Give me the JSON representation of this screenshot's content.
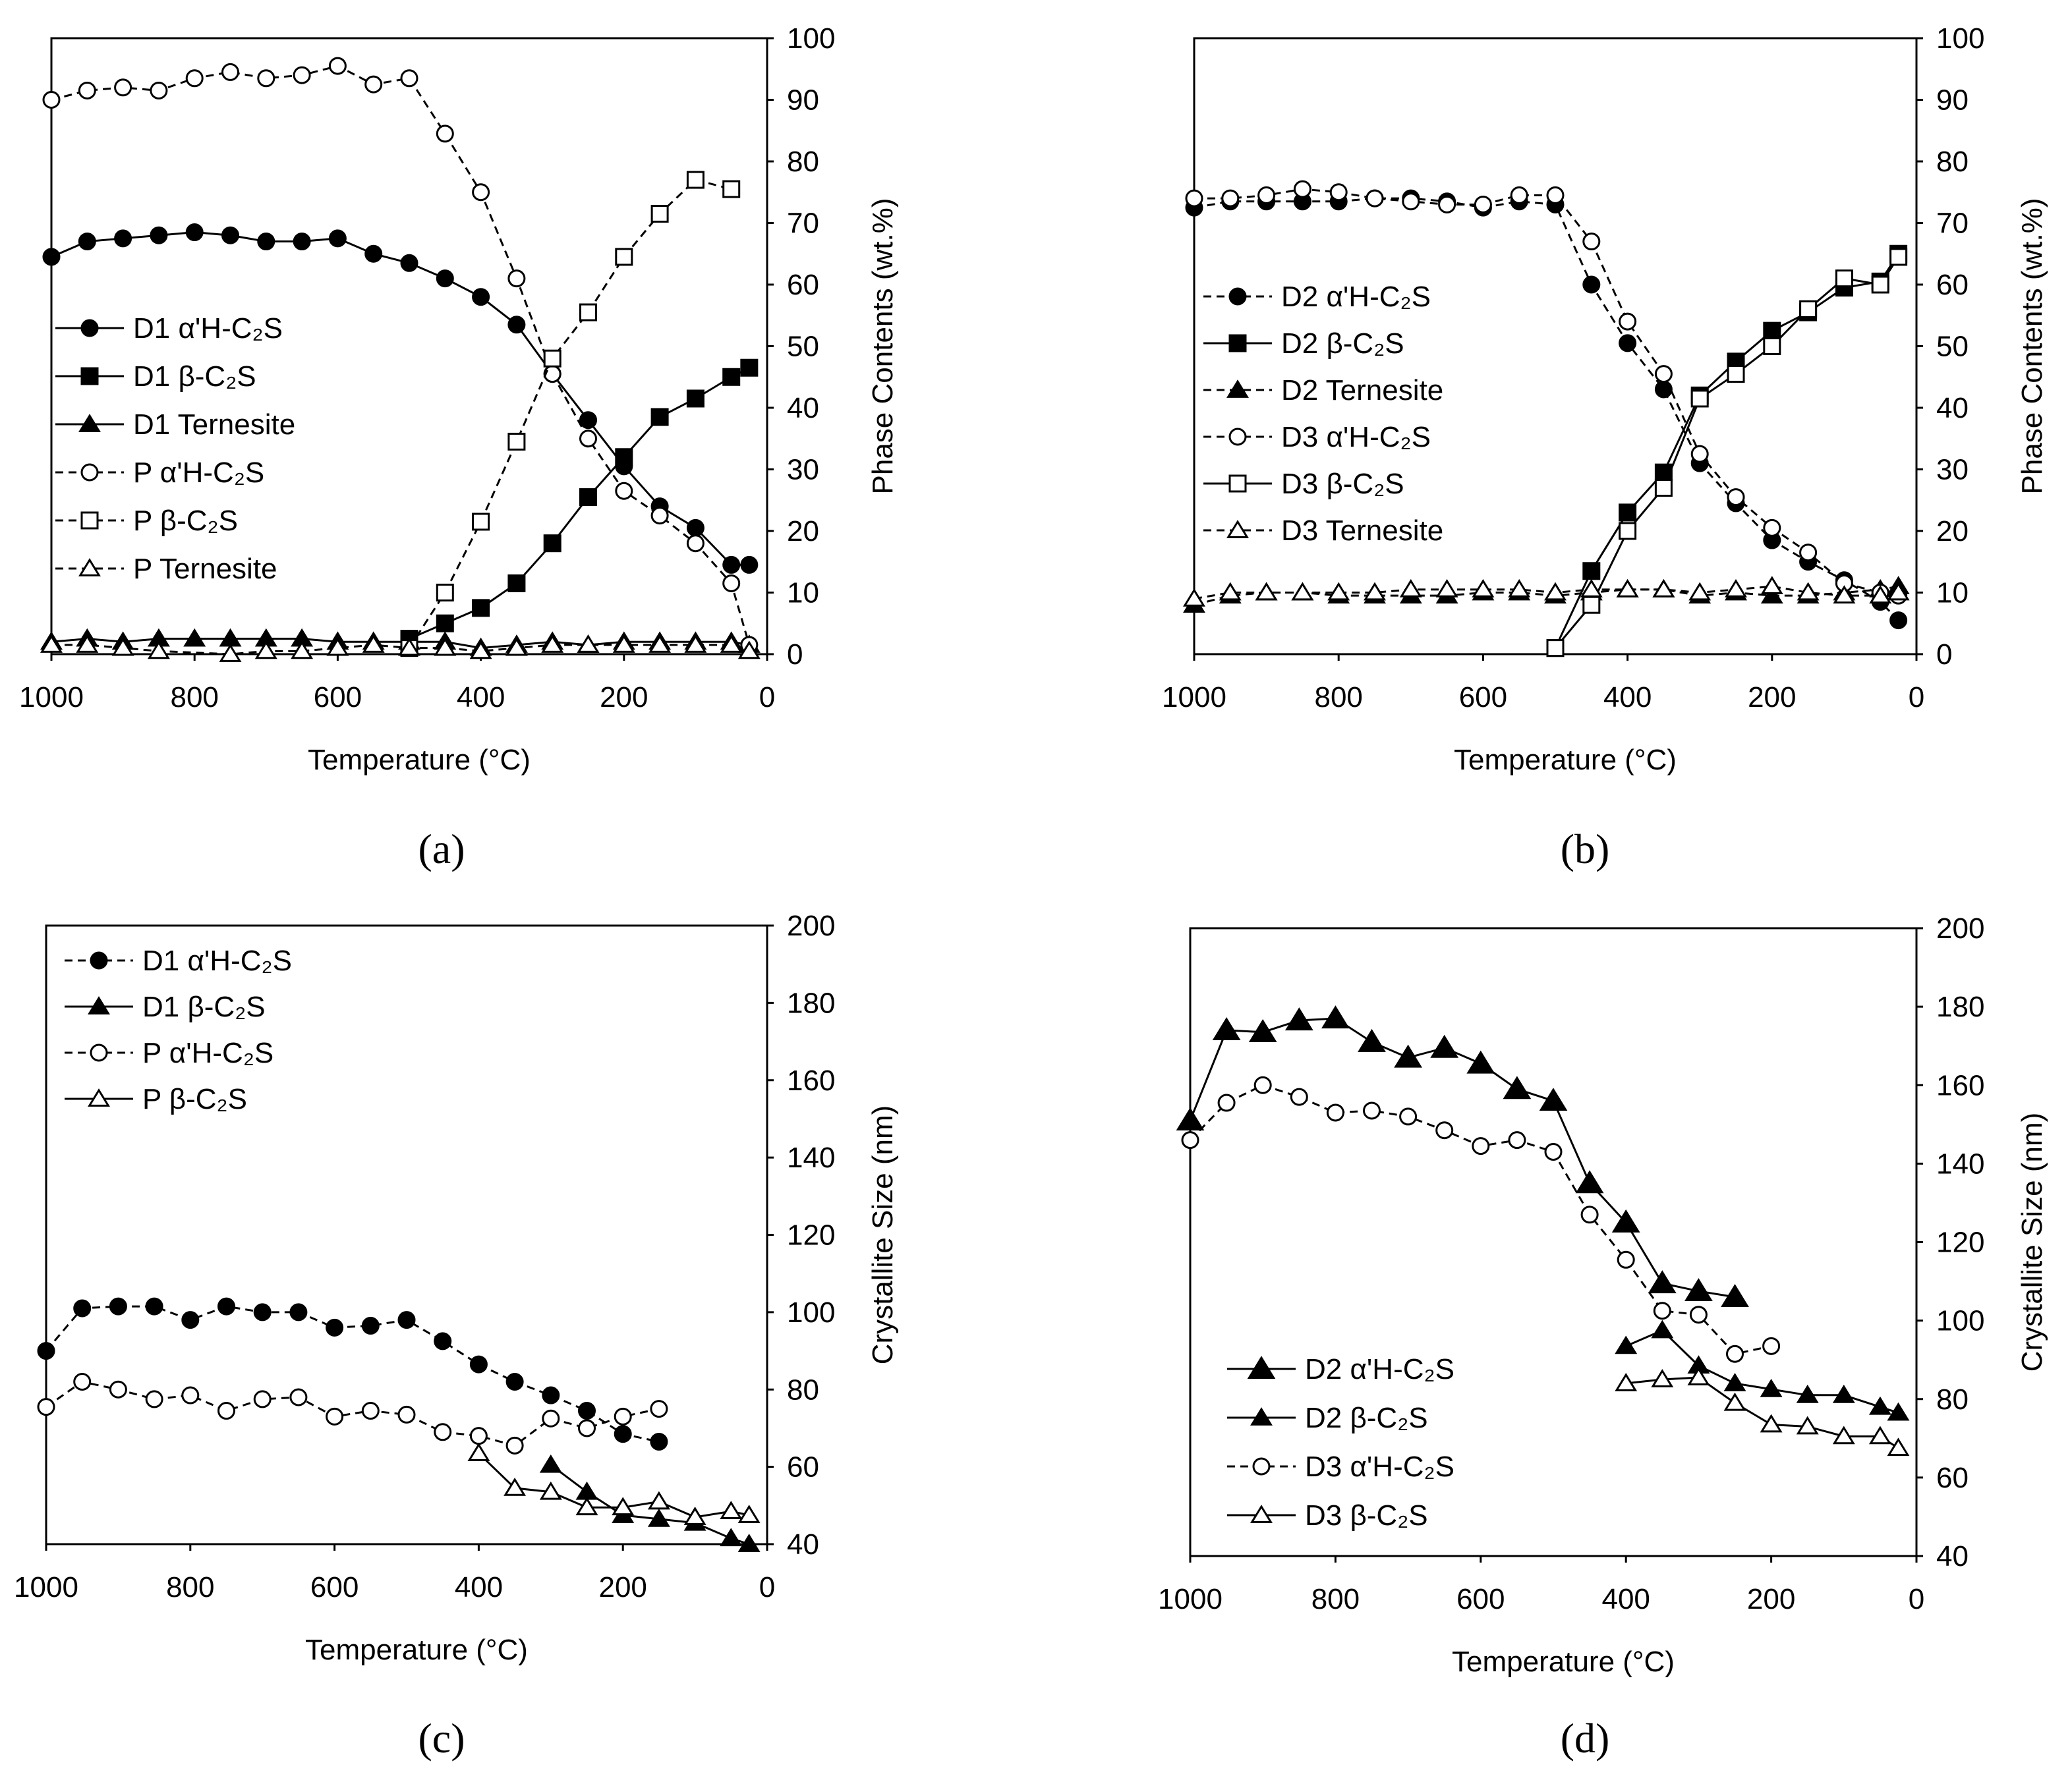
{
  "chart_data": [
    {
      "panel": "(a)",
      "type": "line",
      "xlabel": "Temperature (°C)",
      "ylabel": "Phase Contents (wt.%)",
      "xlim": [
        1000,
        0
      ],
      "ylim": [
        0,
        100
      ],
      "xticks": [
        "1000",
        "800",
        "600",
        "400",
        "200",
        "0"
      ],
      "yticks": [
        "0",
        "10",
        "20",
        "30",
        "40",
        "50",
        "60",
        "70",
        "80",
        "90",
        "100"
      ],
      "legend_position": "middle-left",
      "series": [
        {
          "name": "D1 α'H-C₂S",
          "marker": "circle",
          "filled": true,
          "dash": false,
          "x": [
            1000,
            950,
            900,
            850,
            800,
            750,
            700,
            650,
            600,
            550,
            500,
            450,
            400,
            350,
            300,
            250,
            200,
            150,
            100,
            50,
            25
          ],
          "y": [
            64.5,
            67,
            67.5,
            68,
            68.5,
            68,
            67,
            67,
            67.5,
            65,
            63.5,
            61,
            58,
            53.5,
            45.5,
            38,
            30.5,
            24,
            20.5,
            14.5,
            14.5
          ]
        },
        {
          "name": "D1 β-C₂S",
          "marker": "square",
          "filled": true,
          "dash": false,
          "x": [
            500,
            450,
            400,
            350,
            300,
            250,
            200,
            150,
            100,
            50,
            25
          ],
          "y": [
            2.5,
            5,
            7.5,
            11.5,
            18,
            25.5,
            32,
            38.5,
            41.5,
            45,
            46.5
          ]
        },
        {
          "name": "D1 Ternesite",
          "marker": "triangle",
          "filled": true,
          "dash": false,
          "x": [
            1000,
            950,
            900,
            850,
            800,
            750,
            700,
            650,
            600,
            550,
            500,
            450,
            400,
            350,
            300,
            250,
            200,
            150,
            100,
            50,
            25
          ],
          "y": [
            2,
            2.5,
            2,
            2.5,
            2.5,
            2.5,
            2.5,
            2.5,
            2,
            2,
            2,
            2,
            1,
            1.5,
            2,
            1.5,
            2,
            2,
            2,
            2,
            1.5
          ]
        },
        {
          "name": "P α'H-C₂S",
          "marker": "circle",
          "filled": false,
          "dash": true,
          "x": [
            1000,
            950,
            900,
            850,
            800,
            750,
            700,
            650,
            600,
            550,
            500,
            450,
            400,
            350,
            300,
            250,
            200,
            150,
            100,
            50,
            25
          ],
          "y": [
            90,
            91.5,
            92,
            91.5,
            93.5,
            94.5,
            93.5,
            94,
            95.5,
            92.5,
            93.5,
            84.5,
            75,
            61,
            45.5,
            35,
            26.5,
            22.5,
            18,
            11.5,
            1.5
          ]
        },
        {
          "name": "P β-C₂S",
          "marker": "square",
          "filled": false,
          "dash": true,
          "x": [
            500,
            450,
            400,
            350,
            300,
            250,
            200,
            150,
            100,
            50
          ],
          "y": [
            1,
            10,
            21.5,
            34.5,
            48,
            55.5,
            64.5,
            71.5,
            77,
            75.5
          ]
        },
        {
          "name": "P Ternesite",
          "marker": "triangle",
          "filled": false,
          "dash": true,
          "x": [
            1000,
            950,
            900,
            850,
            750,
            700,
            650,
            600,
            550,
            500,
            450,
            400,
            350,
            300,
            250,
            200,
            150,
            100,
            50,
            25
          ],
          "y": [
            1.5,
            1.5,
            1,
            0.5,
            0,
            0.5,
            0.5,
            1,
            1.5,
            1,
            1,
            0.5,
            1,
            1.5,
            1.5,
            1.5,
            1.5,
            1.5,
            1.5,
            0.5
          ]
        }
      ]
    },
    {
      "panel": "(b)",
      "type": "line",
      "xlabel": "Temperature (°C)",
      "ylabel": "Phase Contents (wt.%)",
      "xlim": [
        1000,
        0
      ],
      "ylim": [
        0,
        100
      ],
      "xticks": [
        "1000",
        "800",
        "600",
        "400",
        "200",
        "0"
      ],
      "yticks": [
        "0",
        "10",
        "20",
        "30",
        "40",
        "50",
        "60",
        "70",
        "80",
        "90",
        "100"
      ],
      "legend_position": "middle-left",
      "series": [
        {
          "name": "D2 α'H-C₂S",
          "marker": "circle",
          "filled": true,
          "dash": true,
          "x": [
            1000,
            950,
            900,
            850,
            800,
            750,
            700,
            650,
            600,
            550,
            500,
            450,
            400,
            350,
            300,
            250,
            200,
            150,
            100,
            50,
            25
          ],
          "y": [
            72.5,
            73.5,
            73.5,
            73.5,
            73.5,
            74,
            74,
            73.5,
            72.5,
            73.5,
            73,
            60,
            50.5,
            43,
            31,
            24.5,
            18.5,
            15,
            12,
            8.5,
            5.5
          ]
        },
        {
          "name": "D2 β-C₂S",
          "marker": "square",
          "filled": true,
          "dash": false,
          "x": [
            500,
            450,
            400,
            350,
            300,
            250,
            200,
            150,
            100,
            50,
            25
          ],
          "y": [
            1,
            13.5,
            23,
            29.5,
            42,
            47.5,
            52.5,
            55.5,
            59.5,
            60.5,
            65
          ]
        },
        {
          "name": "D2 Ternesite",
          "marker": "triangle",
          "filled": true,
          "dash": true,
          "x": [
            1000,
            950,
            900,
            850,
            800,
            750,
            700,
            650,
            600,
            550,
            500,
            450,
            400,
            350,
            300,
            250,
            200,
            150,
            100,
            50,
            25
          ],
          "y": [
            8,
            9.5,
            10,
            10,
            9.5,
            9.5,
            9.5,
            9.5,
            10,
            10,
            9.5,
            10,
            10.5,
            10.5,
            9.5,
            10,
            9.5,
            9.5,
            10,
            10.5,
            11
          ]
        },
        {
          "name": "D3 α'H-C₂S",
          "marker": "circle",
          "filled": false,
          "dash": true,
          "x": [
            1000,
            950,
            900,
            850,
            800,
            750,
            700,
            650,
            600,
            550,
            500,
            450,
            400,
            350,
            300,
            250,
            200,
            150,
            100,
            50,
            25
          ],
          "y": [
            74,
            74,
            74.5,
            75.5,
            75,
            74,
            73.5,
            73,
            73,
            74.5,
            74.5,
            67,
            54,
            45.5,
            32.5,
            25.5,
            20.5,
            16.5,
            11.5,
            10,
            9.5
          ]
        },
        {
          "name": "D3 β-C₂S",
          "marker": "square",
          "filled": false,
          "dash": false,
          "x": [
            500,
            450,
            400,
            350,
            300,
            250,
            200,
            150,
            100,
            50,
            25
          ],
          "y": [
            1,
            8,
            20,
            27,
            41.5,
            45.5,
            50,
            56,
            61,
            60,
            64.5
          ]
        },
        {
          "name": "D3 Ternesite",
          "marker": "triangle",
          "filled": false,
          "dash": true,
          "x": [
            1000,
            950,
            900,
            850,
            800,
            750,
            700,
            650,
            600,
            550,
            500,
            450,
            400,
            350,
            300,
            250,
            200,
            150,
            100,
            50,
            25
          ],
          "y": [
            9,
            10,
            10,
            10,
            10,
            10,
            10.5,
            10.5,
            10.5,
            10.5,
            10,
            10.5,
            10.5,
            10.5,
            10,
            10.5,
            11,
            10,
            9.5,
            9.5,
            10
          ]
        }
      ]
    },
    {
      "panel": "(c)",
      "type": "line",
      "xlabel": "Temperature (°C)",
      "ylabel": "Crystallite Size (nm)",
      "xlim": [
        1000,
        0
      ],
      "ylim": [
        40,
        200
      ],
      "xticks": [
        "1000",
        "800",
        "600",
        "400",
        "200",
        "0"
      ],
      "yticks": [
        "40",
        "60",
        "80",
        "100",
        "120",
        "140",
        "160",
        "180",
        "200"
      ],
      "legend_position": "top-left",
      "series": [
        {
          "name": "D1 α'H-C₂S",
          "marker": "circle",
          "filled": true,
          "dash": true,
          "x": [
            1000,
            950,
            900,
            850,
            800,
            750,
            700,
            650,
            600,
            550,
            500,
            450,
            400,
            350,
            300,
            250,
            200,
            150
          ],
          "y": [
            90,
            101,
            101.5,
            101.5,
            98,
            101.5,
            100,
            100,
            96,
            96.5,
            98,
            92.5,
            86.5,
            82,
            78.5,
            74.5,
            68.5,
            66.5
          ]
        },
        {
          "name": "D1 β-C₂S",
          "marker": "triangle",
          "filled": true,
          "dash": false,
          "x": [
            300,
            250,
            200,
            150,
            100,
            50,
            25
          ],
          "y": [
            60.5,
            53.5,
            47.5,
            46.5,
            45.5,
            41.5,
            40
          ]
        },
        {
          "name": "P α'H-C₂S",
          "marker": "circle",
          "filled": false,
          "dash": true,
          "x": [
            1000,
            950,
            900,
            850,
            800,
            750,
            700,
            650,
            600,
            550,
            500,
            450,
            400,
            350,
            300,
            250,
            200,
            150
          ],
          "y": [
            75.5,
            82,
            80,
            77.5,
            78.5,
            74.5,
            77.5,
            78,
            73,
            74.5,
            73.5,
            69,
            68,
            65.5,
            72.5,
            70,
            73,
            75
          ]
        },
        {
          "name": "P β-C₂S",
          "marker": "triangle",
          "filled": false,
          "dash": false,
          "x": [
            400,
            350,
            300,
            250,
            200,
            150,
            100,
            50,
            25
          ],
          "y": [
            63.5,
            54.5,
            53.5,
            49.5,
            49.5,
            51,
            47,
            48.5,
            47.5
          ]
        }
      ]
    },
    {
      "panel": "(d)",
      "type": "line",
      "xlabel": "Temperature (°C)",
      "ylabel": "Crystallite Size (nm)",
      "xlim": [
        1000,
        0
      ],
      "ylim": [
        40,
        200
      ],
      "xticks": [
        "1000",
        "800",
        "600",
        "400",
        "200",
        "0"
      ],
      "yticks": [
        "40",
        "60",
        "80",
        "100",
        "120",
        "140",
        "160",
        "180",
        "200"
      ],
      "legend_position": "bottom-left",
      "series": [
        {
          "name": "D2 α'H-C₂S",
          "marker": "triangle-large",
          "filled": true,
          "dash": false,
          "x": [
            1000,
            950,
            900,
            850,
            800,
            750,
            700,
            650,
            600,
            550,
            500,
            450,
            400,
            350,
            300,
            250
          ],
          "y": [
            151,
            174,
            173.5,
            176.5,
            177,
            171,
            167,
            169.5,
            165.5,
            159,
            156,
            135,
            125,
            109.5,
            107.5,
            106
          ]
        },
        {
          "name": "D2 β-C₂S",
          "marker": "triangle",
          "filled": true,
          "dash": false,
          "x": [
            400,
            350,
            300,
            250,
            200,
            150,
            100,
            50,
            25
          ],
          "y": [
            93.5,
            97.5,
            88.5,
            84,
            82.5,
            81,
            81,
            78,
            76.5
          ]
        },
        {
          "name": "D3 α'H-C₂S",
          "marker": "circle",
          "filled": false,
          "dash": true,
          "x": [
            1000,
            950,
            900,
            850,
            800,
            750,
            700,
            650,
            600,
            550,
            500,
            450,
            400,
            350,
            300,
            250,
            200
          ],
          "y": [
            146,
            155.5,
            160,
            157,
            153,
            153.5,
            152,
            148.5,
            144.5,
            146,
            143,
            127,
            115.5,
            102.5,
            101.5,
            91.5,
            93.5
          ]
        },
        {
          "name": "D3 β-C₂S",
          "marker": "triangle",
          "filled": false,
          "dash": false,
          "x": [
            400,
            350,
            300,
            250,
            200,
            150,
            100,
            50,
            25
          ],
          "y": [
            84,
            85,
            85.5,
            79,
            73.5,
            73,
            70.5,
            70.5,
            67.5
          ]
        }
      ]
    }
  ]
}
